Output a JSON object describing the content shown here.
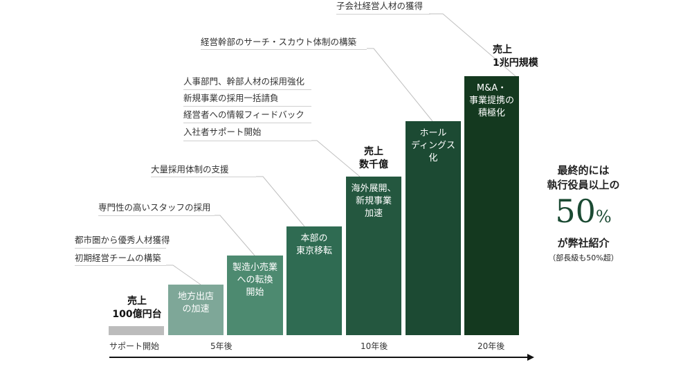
{
  "colors": {
    "base_bar": "#bcbcbc",
    "bar1": "#7ea798",
    "bar2": "#4d8a70",
    "bar3": "#2f6b52",
    "bar4": "#24573f",
    "bar5": "#1c4a33",
    "bar6": "#14391f",
    "arrow": "#111111",
    "connector": "#bfbfbf"
  },
  "notes": {
    "n1": "子会社経営人材の獲得",
    "n2": "経営幹部のサーチ・スカウト体制の構築",
    "n3a": "人事部門、幹部人材の採用強化",
    "n3b": "新規事業の採用一括請負",
    "n3c": "経営者への情報フィードバック",
    "n3d": "入社者サポート開始",
    "n4": "大量採用体制の支援",
    "n5": "専門性の高いスタッフの採用",
    "n6a": "都市圏から優秀人材獲得",
    "n6b": "初期経営チームの構築"
  },
  "bars": {
    "b1": [
      "地方出店",
      "の加速"
    ],
    "b2": [
      "製造小売業",
      "への転換",
      "開始"
    ],
    "b3": [
      "本部の",
      "東京移転"
    ],
    "b4": [
      "海外展開、",
      "新規事業",
      "加速"
    ],
    "b5": [
      "ホール",
      "ディングス",
      "化"
    ],
    "b6": [
      "M&A・",
      "事業提携の",
      "積極化"
    ]
  },
  "sales": {
    "s1": [
      "売上",
      "100億円台"
    ],
    "s2": [
      "売上",
      "数千億"
    ],
    "s3": [
      "売上",
      "1兆円規模"
    ]
  },
  "timeline": {
    "start": "サポート開始",
    "t5": "5年後",
    "t10": "10年後",
    "t20": "20年後"
  },
  "goal": {
    "line1": "最終的には",
    "line2": "執行役員以上の",
    "number": "50",
    "unit": "%",
    "line3": "が弊社紹介",
    "note": "（部長級も50%超）"
  }
}
